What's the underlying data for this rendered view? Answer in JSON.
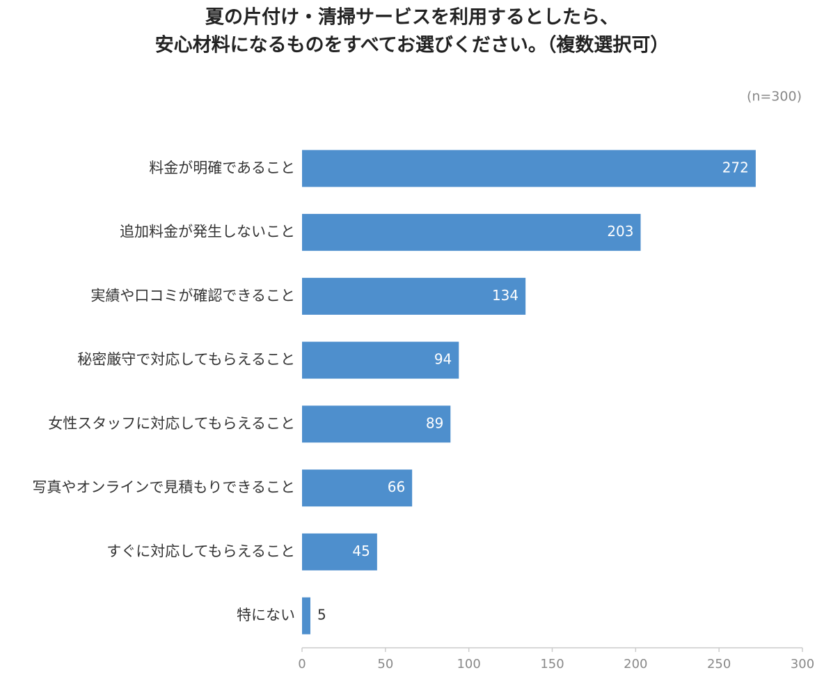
{
  "chart_data": {
    "type": "bar",
    "orientation": "horizontal",
    "title": [
      "夏の片付け・清掃サービスを利用するとしたら、",
      "安心材料になるものをすべてお選びください。（複数選択可）"
    ],
    "subtitle": "(n=300)",
    "categories": [
      "料金が明確であること",
      "追加料金が発生しないこと",
      "実績や口コミが確認できること",
      "秘密厳守で対応してもらえること",
      "女性スタッフに対応してもらえること",
      "写真やオンラインで見積もりできること",
      "すぐに対応してもらえること",
      "特にない"
    ],
    "values": [
      272,
      203,
      134,
      94,
      89,
      66,
      45,
      5
    ],
    "color": "#4e8fcd",
    "xlim": [
      0,
      300
    ],
    "xticks": [
      0,
      50,
      100,
      150,
      200,
      250,
      300
    ],
    "grid": false
  }
}
